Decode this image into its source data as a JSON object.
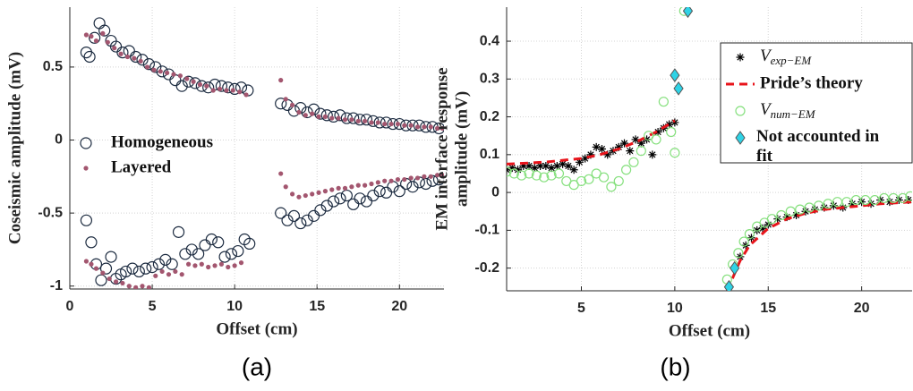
{
  "chart_data": [
    {
      "type": "scatter",
      "panel_label": "(a)",
      "xlabel": "Offset (cm)",
      "ylabel": "Coseismic amplitude (mV)",
      "xlim": [
        0,
        22.7
      ],
      "xticks": [
        0,
        5,
        10,
        15,
        20
      ],
      "ylim": [
        -1.02,
        0.91
      ],
      "yticks": [
        {
          "value": -1,
          "label": "-1"
        },
        -0.5,
        0,
        0.5
      ],
      "grid": true,
      "legend": "center left",
      "series": [
        {
          "name": "Homogeneous",
          "marker": "open-circle",
          "color": "#1c2b40",
          "x": [
            1.0,
            1.2,
            1.5,
            1.8,
            2.1,
            2.5,
            2.8,
            3.2,
            3.6,
            4.0,
            4.4,
            4.8,
            5.2,
            5.6,
            6.0,
            6.4,
            6.8,
            7.2,
            7.6,
            8.0,
            8.4,
            8.8,
            9.2,
            9.6,
            10.0,
            10.4,
            10.8,
            12.8,
            13.2,
            13.6,
            14.0,
            14.4,
            14.8,
            15.2,
            15.6,
            16.0,
            16.4,
            16.8,
            17.2,
            17.6,
            18.0,
            18.4,
            18.8,
            19.2,
            19.6,
            20.0,
            20.4,
            20.8,
            21.2,
            21.6,
            22.0,
            22.4,
            1.0,
            1.3,
            1.6,
            1.9,
            2.2,
            2.5,
            2.8,
            3.1,
            3.4,
            3.8,
            4.2,
            4.6,
            5.0,
            5.4,
            5.8,
            6.2,
            6.6,
            7.0,
            7.4,
            7.8,
            8.2,
            8.6,
            9.0,
            9.4,
            9.8,
            10.2,
            10.6,
            10.9,
            12.8,
            13.2,
            13.6,
            14.0,
            14.4,
            14.8,
            15.2,
            15.6,
            16.0,
            16.4,
            16.8,
            17.2,
            17.6,
            18.0,
            18.4,
            18.8,
            19.2,
            19.6,
            20.0,
            20.4,
            20.8,
            21.2,
            21.6,
            22.0,
            22.4
          ],
          "values": [
            0.6,
            0.57,
            0.7,
            0.8,
            0.75,
            0.68,
            0.64,
            0.6,
            0.61,
            0.57,
            0.55,
            0.52,
            0.5,
            0.47,
            0.45,
            0.41,
            0.37,
            0.4,
            0.39,
            0.37,
            0.36,
            0.38,
            0.37,
            0.36,
            0.35,
            0.36,
            0.34,
            0.25,
            0.24,
            0.2,
            0.22,
            0.19,
            0.21,
            0.18,
            0.17,
            0.16,
            0.17,
            0.15,
            0.15,
            0.14,
            0.14,
            0.13,
            0.12,
            0.12,
            0.11,
            0.11,
            0.1,
            0.1,
            0.1,
            0.09,
            0.09,
            0.08,
            -0.55,
            -0.7,
            -0.85,
            -0.96,
            -0.88,
            -0.8,
            -0.95,
            -0.92,
            -0.9,
            -0.88,
            -0.9,
            -0.88,
            -0.87,
            -0.85,
            -0.82,
            -0.85,
            -0.63,
            -0.78,
            -0.75,
            -0.78,
            -0.72,
            -0.68,
            -0.7,
            -0.8,
            -0.78,
            -0.76,
            -0.68,
            -0.71,
            -0.5,
            -0.55,
            -0.52,
            -0.57,
            -0.55,
            -0.52,
            -0.48,
            -0.45,
            -0.42,
            -0.4,
            -0.38,
            -0.44,
            -0.4,
            -0.42,
            -0.38,
            -0.35,
            -0.36,
            -0.32,
            -0.35,
            -0.3,
            -0.32,
            -0.29,
            -0.3,
            -0.28,
            -0.27
          ]
        },
        {
          "name": "Layered",
          "marker": "dot",
          "color": "#a3566f",
          "x": [
            1.0,
            1.3,
            1.6,
            2.0,
            2.3,
            2.7,
            3.1,
            3.5,
            3.9,
            4.3,
            4.7,
            5.1,
            5.5,
            5.9,
            6.3,
            6.7,
            7.1,
            7.5,
            7.9,
            8.3,
            8.7,
            9.1,
            9.5,
            9.9,
            10.3,
            10.7,
            12.8,
            13.1,
            13.5,
            13.9,
            14.3,
            14.7,
            15.1,
            15.5,
            15.9,
            16.3,
            16.7,
            17.1,
            17.5,
            17.9,
            18.3,
            18.7,
            19.1,
            19.5,
            19.9,
            20.3,
            20.7,
            21.1,
            21.5,
            21.9,
            22.3,
            22.6,
            1.0,
            1.3,
            1.6,
            2.0,
            2.4,
            2.8,
            3.2,
            3.6,
            4.0,
            4.4,
            4.8,
            5.2,
            5.6,
            6.0,
            6.4,
            6.8,
            7.2,
            7.6,
            8.0,
            8.4,
            8.8,
            9.2,
            9.6,
            10.0,
            10.4,
            12.8,
            13.1,
            13.5,
            13.9,
            14.3,
            14.7,
            15.1,
            15.5,
            15.9,
            16.3,
            16.7,
            17.1,
            17.5,
            17.9,
            18.3,
            18.7,
            19.1,
            19.5,
            19.9,
            20.3,
            20.7,
            21.1,
            21.5,
            21.9,
            22.3,
            22.6
          ],
          "values": [
            0.72,
            0.71,
            0.68,
            0.73,
            0.67,
            0.63,
            0.59,
            0.57,
            0.56,
            0.54,
            0.5,
            0.48,
            0.47,
            0.46,
            0.45,
            0.44,
            0.42,
            0.4,
            0.38,
            0.37,
            0.34,
            0.35,
            0.34,
            0.34,
            0.33,
            0.31,
            0.41,
            0.28,
            0.24,
            0.19,
            0.17,
            0.18,
            0.16,
            0.16,
            0.15,
            0.15,
            0.14,
            0.14,
            0.13,
            0.13,
            0.12,
            0.12,
            0.11,
            0.11,
            0.11,
            0.1,
            0.1,
            0.09,
            0.09,
            0.09,
            0.08,
            0.08,
            -0.83,
            -0.85,
            -0.88,
            -0.91,
            -0.95,
            -0.97,
            -0.98,
            -1.0,
            -1.01,
            -1.0,
            -1.01,
            -0.93,
            -0.9,
            -0.92,
            -0.9,
            -0.92,
            -0.85,
            -0.86,
            -0.85,
            -0.87,
            -0.86,
            -0.85,
            -0.87,
            -0.86,
            -0.84,
            -0.23,
            -0.32,
            -0.37,
            -0.39,
            -0.38,
            -0.37,
            -0.36,
            -0.35,
            -0.34,
            -0.33,
            -0.33,
            -0.32,
            -0.31,
            -0.31,
            -0.3,
            -0.29,
            -0.28,
            -0.28,
            -0.27,
            -0.27,
            -0.26,
            -0.26,
            -0.25,
            -0.25,
            -0.24,
            -0.24
          ]
        }
      ]
    },
    {
      "type": "scatter",
      "panel_label": "(b)",
      "xlabel": "Offset (cm)",
      "ylabel": [
        "EM interface response",
        "amplitude (mV)"
      ],
      "xlim": [
        1,
        22.7
      ],
      "xticks": [
        5,
        10,
        15,
        20
      ],
      "ylim": [
        -0.26,
        0.49
      ],
      "yticks": [
        -0.2,
        -0.1,
        0,
        0.1,
        0.2,
        0.3,
        0.4
      ],
      "grid": true,
      "legend": "upper right",
      "series": [
        {
          "name": "V",
          "subscript": "exp−EM",
          "marker": "asterisk",
          "color": "#000000",
          "x": [
            1.0,
            1.3,
            1.6,
            1.9,
            2.2,
            2.5,
            2.8,
            3.1,
            3.4,
            3.7,
            4.0,
            4.3,
            4.6,
            4.9,
            5.2,
            5.5,
            5.8,
            6.1,
            6.4,
            6.7,
            7.0,
            7.3,
            7.6,
            7.9,
            8.2,
            8.5,
            8.8,
            9.1,
            9.4,
            9.7,
            10.0,
            13.2,
            13.5,
            13.8,
            14.1,
            14.4,
            14.7,
            15.0,
            15.5,
            16.0,
            16.5,
            17.0,
            17.5,
            18.0,
            18.5,
            19.0,
            19.5,
            20.0,
            20.5,
            21.0,
            21.5,
            22.0,
            22.5
          ],
          "values": [
            0.06,
            0.065,
            0.06,
            0.07,
            0.07,
            0.065,
            0.07,
            0.07,
            0.065,
            0.07,
            0.075,
            0.07,
            0.06,
            0.08,
            0.09,
            0.1,
            0.12,
            0.115,
            0.1,
            0.11,
            0.12,
            0.13,
            0.11,
            0.14,
            0.13,
            0.14,
            0.1,
            0.16,
            0.17,
            0.18,
            0.185,
            -0.2,
            -0.17,
            -0.14,
            -0.12,
            -0.1,
            -0.095,
            -0.085,
            -0.07,
            -0.065,
            -0.06,
            -0.05,
            -0.045,
            -0.04,
            -0.035,
            -0.04,
            -0.03,
            -0.025,
            -0.03,
            -0.02,
            -0.025,
            -0.02,
            -0.02
          ]
        },
        {
          "name": "Pride’s theory",
          "marker": "line",
          "color": "#e8141b",
          "x": [
            1,
            3,
            5,
            6,
            7,
            8,
            9,
            9.5,
            10,
            11,
            12.8,
            13.5,
            14,
            15,
            16,
            17,
            18,
            19,
            20,
            21,
            22.7
          ],
          "values": [
            0.075,
            0.08,
            0.09,
            0.1,
            0.115,
            0.135,
            0.16,
            0.175,
            0.19,
            null,
            -0.26,
            -0.18,
            -0.14,
            -0.095,
            -0.07,
            -0.055,
            -0.045,
            -0.04,
            -0.035,
            -0.03,
            -0.025
          ]
        },
        {
          "name": "V",
          "subscript": "num−EM",
          "marker": "open-circle",
          "color": "#86e07e",
          "x": [
            1.0,
            1.4,
            1.8,
            2.2,
            2.6,
            3.0,
            3.4,
            3.8,
            4.2,
            4.6,
            5.0,
            5.4,
            5.8,
            6.2,
            6.6,
            7.0,
            7.4,
            7.8,
            8.2,
            8.6,
            9.0,
            9.4,
            9.8,
            10.0,
            10.5,
            12.8,
            13.1,
            13.4,
            13.7,
            14.0,
            14.4,
            14.8,
            15.2,
            15.7,
            16.2,
            16.7,
            17.2,
            17.7,
            18.2,
            18.7,
            19.2,
            19.7,
            20.2,
            20.7,
            21.2,
            21.7,
            22.2,
            22.6
          ],
          "values": [
            0.055,
            0.05,
            0.045,
            0.05,
            0.045,
            0.04,
            0.045,
            0.05,
            0.03,
            0.02,
            0.03,
            0.035,
            0.05,
            0.04,
            0.015,
            0.03,
            0.06,
            0.08,
            0.11,
            0.15,
            0.14,
            0.24,
            0.16,
            0.105,
            0.48,
            -0.23,
            -0.19,
            -0.16,
            -0.13,
            -0.11,
            -0.09,
            -0.08,
            -0.07,
            -0.06,
            -0.05,
            -0.045,
            -0.04,
            -0.035,
            -0.03,
            -0.025,
            -0.025,
            -0.02,
            -0.02,
            -0.02,
            -0.015,
            -0.015,
            -0.015,
            -0.01
          ]
        },
        {
          "name": "Not accounted in fit",
          "marker": "diamond",
          "color": "#2fd3e6",
          "x": [
            10.0,
            10.2,
            10.7,
            12.9,
            13.2
          ],
          "values": [
            0.31,
            0.275,
            0.48,
            -0.25,
            -0.2
          ]
        }
      ]
    }
  ]
}
